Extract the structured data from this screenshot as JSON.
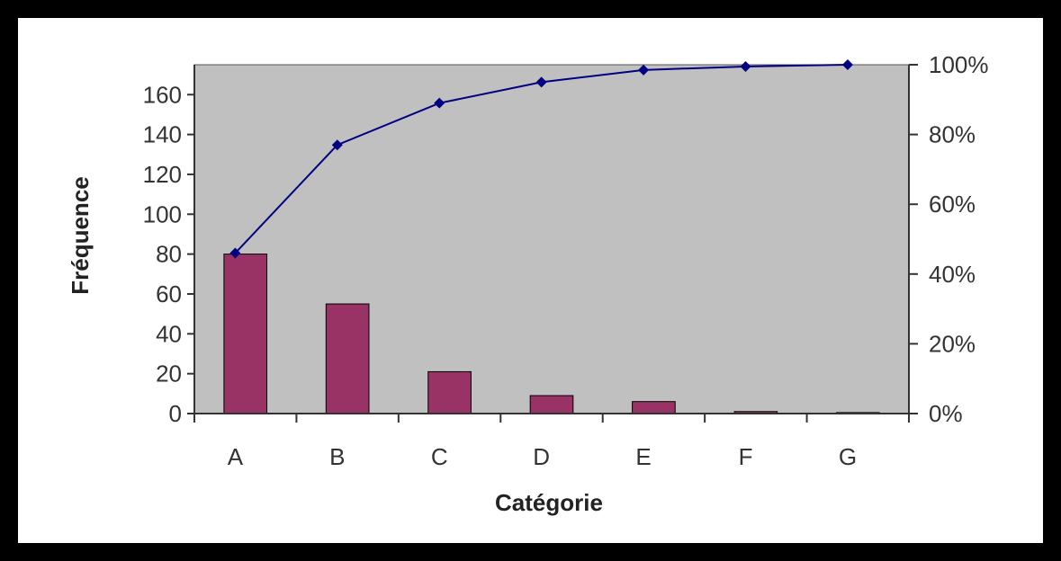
{
  "chart_data": {
    "type": "bar",
    "title": "",
    "xlabel": "Catégorie",
    "ylabel": "Fréquence",
    "categories": [
      "A",
      "B",
      "C",
      "D",
      "E",
      "F",
      "G"
    ],
    "ylim": [
      0,
      175
    ],
    "yticks": [
      0,
      20,
      40,
      60,
      80,
      100,
      120,
      140,
      160
    ],
    "y2lim": [
      0,
      1
    ],
    "y2ticks": [
      "0%",
      "20%",
      "40%",
      "60%",
      "80%",
      "100%"
    ],
    "series": [
      {
        "type": "bar",
        "axis": "left",
        "values": [
          80,
          55,
          21,
          9,
          6,
          1,
          0.5
        ]
      },
      {
        "type": "line",
        "axis": "right",
        "values": [
          0.46,
          0.77,
          0.89,
          0.95,
          0.985,
          0.995,
          1.0
        ]
      }
    ],
    "grid": false,
    "colors": {
      "bars": "#993366",
      "line": "#000080",
      "plot_bg": "#c0c0c0"
    }
  }
}
